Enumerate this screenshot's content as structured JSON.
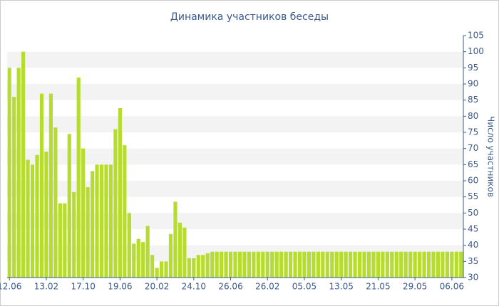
{
  "chart_data": {
    "type": "bar",
    "title": "Динамика участников беседы",
    "y_axis_label": "Число участников",
    "color": "#b6dc2e",
    "grid": true,
    "ylim": [
      30,
      105
    ],
    "yticks": [
      30,
      35,
      40,
      45,
      50,
      55,
      60,
      65,
      70,
      75,
      80,
      85,
      90,
      95,
      100,
      105
    ],
    "categories": [
      "12.06",
      null,
      null,
      null,
      null,
      null,
      null,
      null,
      "13.02",
      null,
      null,
      null,
      null,
      null,
      null,
      null,
      "17.10",
      null,
      null,
      null,
      null,
      null,
      null,
      null,
      "19.06",
      null,
      null,
      null,
      null,
      null,
      null,
      null,
      "20.02",
      null,
      null,
      null,
      null,
      null,
      null,
      null,
      "24.10",
      null,
      null,
      null,
      null,
      null,
      null,
      null,
      "26.06",
      null,
      null,
      null,
      null,
      null,
      null,
      null,
      "26.02",
      null,
      null,
      null,
      null,
      null,
      null,
      null,
      "05.05",
      null,
      null,
      null,
      null,
      null,
      null,
      null,
      "13.05",
      null,
      null,
      null,
      null,
      null,
      null,
      null,
      "21.05",
      null,
      null,
      null,
      null,
      null,
      null,
      null,
      "29.05",
      null,
      null,
      null,
      null,
      null,
      null,
      null,
      "06.06",
      null,
      null
    ],
    "values": [
      95,
      86,
      95,
      100,
      66.5,
      65,
      68,
      87,
      69,
      87,
      76.5,
      53,
      53,
      74.5,
      56.5,
      92,
      70,
      58,
      63,
      65,
      65,
      65,
      65,
      76,
      82.5,
      71,
      50,
      40.5,
      42,
      41,
      46,
      37,
      33,
      35,
      35,
      43.5,
      53.5,
      47,
      45.5,
      36,
      36,
      37,
      37,
      37.5,
      38,
      38,
      38,
      38,
      38,
      38,
      38,
      38,
      38,
      38,
      38,
      38,
      38,
      38,
      38,
      38,
      38,
      38,
      38,
      38,
      38,
      38,
      38,
      38,
      38,
      38,
      38,
      38,
      38,
      38,
      38,
      38,
      38,
      38,
      38,
      38,
      38,
      38,
      38,
      38,
      38,
      38,
      38,
      38,
      38,
      38,
      38,
      38,
      38,
      38,
      38,
      38,
      38,
      38,
      38
    ]
  }
}
